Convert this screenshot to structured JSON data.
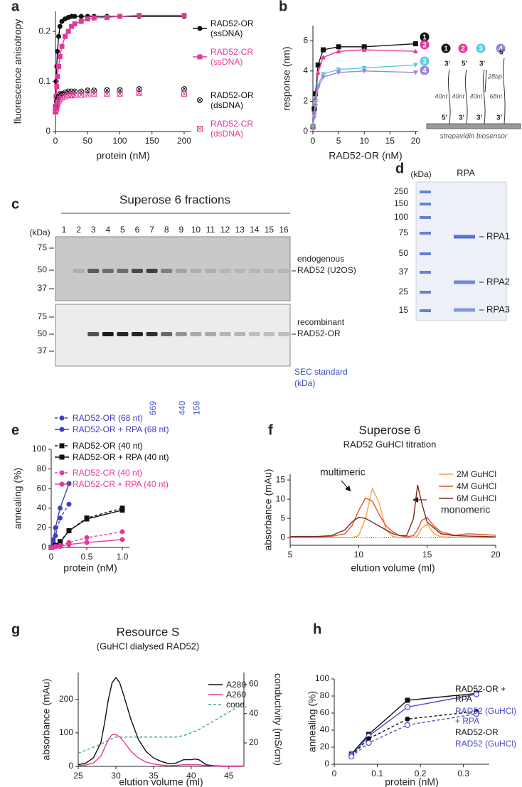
{
  "chart_data": [
    {
      "panel": "a",
      "type": "scatter",
      "x_label": "protein (nM)",
      "y_label": "fluorescence anisotropy",
      "xlim": [
        0,
        210
      ],
      "ylim": [
        0,
        0.24
      ],
      "xticks": [
        0,
        50,
        100,
        150,
        200
      ],
      "yticks": [
        0,
        0.1,
        0.2
      ],
      "x": [
        0,
        1,
        2,
        3,
        5,
        7,
        10,
        15,
        20,
        25,
        30,
        40,
        50,
        60,
        80,
        100,
        130,
        200
      ],
      "series": [
        {
          "name": "RAD52-OR (ssDNA)",
          "color": "#111111",
          "marker": "circle",
          "linestyle": "solid",
          "values": [
            0.05,
            0.1,
            0.13,
            0.16,
            0.19,
            0.21,
            0.22,
            0.225,
            0.228,
            0.23,
            0.23,
            0.23,
            0.23,
            0.23,
            0.23,
            0.23,
            0.23,
            0.23
          ]
        },
        {
          "name": "RAD52-CR (ssDNA)",
          "color": "#e5389b",
          "marker": "square",
          "linestyle": "solid",
          "values": [
            0.05,
            0.07,
            0.09,
            0.11,
            0.13,
            0.15,
            0.17,
            0.19,
            0.2,
            0.21,
            0.215,
            0.22,
            0.225,
            0.227,
            0.228,
            0.23,
            0.232,
            0.232
          ]
        },
        {
          "name": "RAD52-OR (dsDNA)",
          "color": "#111111",
          "marker": "circle-x",
          "linestyle": "none",
          "values": [
            0.04,
            0.05,
            0.06,
            0.065,
            0.07,
            0.075,
            0.075,
            0.078,
            0.08,
            0.08,
            0.08,
            0.08,
            0.082,
            0.082,
            0.083,
            0.083,
            0.085,
            0.085
          ]
        },
        {
          "name": "RAD52-CR (dsDNA)",
          "color": "#e5389b",
          "marker": "square-x",
          "linestyle": "none",
          "values": [
            0.04,
            0.045,
            0.05,
            0.055,
            0.06,
            0.065,
            0.068,
            0.07,
            0.072,
            0.072,
            0.073,
            0.073,
            0.074,
            0.075,
            0.075,
            0.075,
            0.077,
            0.075
          ]
        }
      ]
    },
    {
      "panel": "b",
      "type": "scatter",
      "x_label": "RAD52-OR (nM)",
      "y_label": "response (nm)",
      "xlim": [
        0,
        20.5
      ],
      "ylim": [
        0,
        7
      ],
      "xticks": [
        0,
        5,
        10,
        15,
        20
      ],
      "yticks": [
        0,
        2,
        4,
        6
      ],
      "x": [
        0,
        0.25,
        0.5,
        1,
        2,
        5,
        10,
        20
      ],
      "series": [
        {
          "name": "1",
          "color": "#111111",
          "marker": "square",
          "linestyle": "solid",
          "values": [
            0.3,
            1.5,
            2.5,
            4.4,
            5.4,
            5.6,
            5.6,
            5.8
          ]
        },
        {
          "name": "2",
          "color": "#e5389b",
          "marker": "triangle",
          "linestyle": "solid",
          "values": [
            0.3,
            1.3,
            2.2,
            3.9,
            4.9,
            5.3,
            5.4,
            5.3
          ]
        },
        {
          "name": "3",
          "color": "#5bc8e8",
          "marker": "triangle-down",
          "linestyle": "solid",
          "values": [
            0.3,
            1.0,
            1.9,
            3.1,
            3.8,
            4.1,
            4.2,
            4.4
          ]
        },
        {
          "name": "4",
          "color": "#9b87d0",
          "marker": "triangle-down",
          "linestyle": "solid",
          "values": [
            0.2,
            0.9,
            1.7,
            2.9,
            3.6,
            3.9,
            4.0,
            3.9
          ]
        }
      ]
    },
    {
      "panel": "e",
      "type": "scatter",
      "x_label": "protein (nM)",
      "y_label": "annealing (%)",
      "xlim": [
        0,
        1.1
      ],
      "ylim": [
        0,
        100
      ],
      "xticks": [
        0,
        0.5,
        {
          "value": 1,
          "label": "1.0"
        }
      ],
      "yticks": [
        0,
        20,
        40,
        60,
        80,
        100
      ],
      "series": [
        {
          "name": "RAD52-OR (68 nt)",
          "color": "#3f3fc4",
          "marker": "circle",
          "linestyle": "dashed",
          "x": [
            0,
            0.03,
            0.06,
            0.125,
            0.25
          ],
          "values": [
            0,
            5,
            12,
            30,
            44
          ]
        },
        {
          "name": "RAD52-OR + RPA (68 nt)",
          "color": "#3f3fc4",
          "marker": "circle",
          "linestyle": "solid",
          "x": [
            0,
            0.03,
            0.06,
            0.125,
            0.25
          ],
          "values": [
            0,
            8,
            20,
            40,
            65
          ]
        },
        {
          "name": "RAD52-OR (40 nt)",
          "color": "#111111",
          "marker": "square",
          "linestyle": "dashed",
          "x": [
            0,
            0.06,
            0.125,
            0.25,
            0.5,
            1
          ],
          "values": [
            0,
            2,
            6,
            17,
            30,
            40
          ]
        },
        {
          "name": "RAD52-OR + RPA (40 nt)",
          "color": "#111111",
          "marker": "square",
          "linestyle": "solid",
          "x": [
            0,
            0.06,
            0.125,
            0.25,
            0.5,
            1
          ],
          "values": [
            0,
            2,
            5,
            17,
            29,
            38
          ]
        },
        {
          "name": "RAD52-CR (40 nt)",
          "color": "#e5389b",
          "marker": "circle",
          "linestyle": "dashed",
          "x": [
            0,
            0.06,
            0.125,
            0.25,
            0.5,
            1
          ],
          "values": [
            0,
            1,
            2,
            5,
            10,
            16
          ]
        },
        {
          "name": "RAD52-CR + RPA (40 nt)",
          "color": "#e5389b",
          "marker": "circle",
          "linestyle": "solid",
          "x": [
            0,
            0.06,
            0.125,
            0.25,
            0.5,
            1
          ],
          "values": [
            0,
            0.5,
            1,
            3,
            5,
            8
          ]
        }
      ]
    },
    {
      "panel": "f",
      "type": "line",
      "title": "Superose 6",
      "subtitle": "RAD52 GuHCl titration",
      "x_label": "elution volume (ml)",
      "y_label": "absorbance (mAu)",
      "xlim": [
        5,
        20
      ],
      "ylim": [
        -2,
        16.5
      ],
      "xticks": [
        5,
        10,
        15,
        20
      ],
      "yticks": [
        0,
        5,
        10,
        15
      ],
      "annotations": [
        "multimeric",
        "monomeric"
      ],
      "x": [
        5,
        6,
        7,
        8,
        9,
        9.5,
        10,
        10.5,
        11,
        11.5,
        12,
        12.5,
        13,
        13.5,
        14,
        14.3,
        14.6,
        15,
        15.5,
        16,
        17,
        18,
        19,
        20
      ],
      "series": [
        {
          "name": "2M GuHCl",
          "color": "#f5a04a",
          "linestyle": "solid",
          "values": [
            0,
            0,
            0,
            0,
            0,
            0,
            0.5,
            5,
            12.8,
            9,
            2,
            0.3,
            0,
            0,
            0,
            0.5,
            2.5,
            3.5,
            1,
            0.2,
            0.1,
            0,
            0,
            0
          ]
        },
        {
          "name": "4M GuHCl",
          "color": "#e8502a",
          "linestyle": "solid",
          "values": [
            0.2,
            0.2,
            0.2,
            0.3,
            1,
            3,
            7,
            10.3,
            9.5,
            6,
            3,
            1.5,
            0.5,
            0.2,
            0.5,
            2,
            4.5,
            5.2,
            3,
            1.5,
            0.6,
            1,
            0.8,
            0.6
          ]
        },
        {
          "name": "6M GuHCl",
          "color": "#7a2a1a",
          "linestyle": "solid",
          "values": [
            0.3,
            0.3,
            0.3,
            0.5,
            2,
            4,
            5.3,
            5,
            4,
            3,
            2,
            1,
            0.5,
            0.5,
            5,
            13.7,
            9,
            4,
            2.5,
            1,
            0.5,
            0.4,
            0.3,
            0.2
          ]
        }
      ]
    },
    {
      "panel": "g",
      "type": "line",
      "title": "Resource S",
      "subtitle": "(GuHCl dialysed RAD52)",
      "x_label": "elution volume (ml)",
      "y_label": "absorbance (mAu)",
      "y2_label": "conductivity (mS/cm)",
      "xlim": [
        25,
        47
      ],
      "ylim": [
        0,
        280
      ],
      "y2lim": [
        4,
        68
      ],
      "xticks": [
        25,
        30,
        35,
        40,
        45
      ],
      "yticks": [
        0,
        100,
        200
      ],
      "y2ticks": [
        20,
        40,
        60
      ],
      "x": [
        25,
        26,
        27,
        28,
        28.5,
        29,
        29.5,
        30,
        30.5,
        31,
        32,
        33,
        34,
        35,
        36,
        37,
        38,
        39,
        40,
        40.5,
        41,
        42,
        43,
        44,
        45,
        46,
        47
      ],
      "series": [
        {
          "name": "A280",
          "color": "#111111",
          "linestyle": "solid",
          "values": [
            5,
            10,
            25,
            70,
            130,
            200,
            250,
            265,
            250,
            215,
            140,
            80,
            45,
            25,
            15,
            8,
            10,
            20,
            20,
            22,
            20,
            5,
            2,
            1,
            1,
            1,
            1
          ]
        },
        {
          "name": "A260",
          "color": "#e5389b",
          "linestyle": "solid",
          "values": [
            2,
            4,
            10,
            30,
            55,
            80,
            95,
            95,
            88,
            75,
            45,
            25,
            13,
            7,
            4,
            2,
            3,
            5,
            5,
            5,
            5,
            2,
            1,
            0,
            0,
            0,
            0
          ]
        },
        {
          "name": "cond.",
          "color": "#3aa88a",
          "linestyle": "dashed",
          "axis": "y2",
          "values": [
            13,
            15,
            17,
            19,
            20.5,
            22,
            23,
            24,
            24,
            24,
            24,
            24,
            24,
            24,
            24,
            24,
            24,
            25,
            27,
            28,
            29,
            32,
            35,
            38,
            41,
            44,
            47
          ]
        }
      ]
    },
    {
      "panel": "h",
      "type": "scatter",
      "x_label": "protein (nM)",
      "y_label": "annealing (%)",
      "xlim": [
        0,
        0.36
      ],
      "ylim": [
        0,
        100
      ],
      "xticks": [
        0,
        0.1,
        0.2,
        0.3
      ],
      "yticks": [
        0,
        20,
        40,
        60,
        80,
        100
      ],
      "x": [
        0.04,
        0.08,
        0.17,
        0.33
      ],
      "series": [
        {
          "name": "RAD52-OR + RPA",
          "color": "#111111",
          "marker": "square",
          "linestyle": "solid",
          "values": [
            12,
            35,
            75,
            83
          ]
        },
        {
          "name": "RAD52 (GuHCl) + RPA",
          "color": "#4a4ac8",
          "marker": "circle-open",
          "linestyle": "solid",
          "values": [
            11,
            33,
            67,
            82
          ]
        },
        {
          "name": "RAD52-OR",
          "color": "#111111",
          "marker": "circle",
          "linestyle": "dashed",
          "values": [
            10,
            30,
            53,
            62
          ]
        },
        {
          "name": "RAD52 (GuHCl)",
          "color": "#4a4ac8",
          "marker": "circle-open",
          "linestyle": "dashed",
          "values": [
            9,
            25,
            46,
            59
          ]
        }
      ]
    }
  ],
  "diagram_b": {
    "strands": [
      {
        "id": "1",
        "color": "#111111",
        "top": "3'",
        "length": "40nt",
        "bottom": "5'"
      },
      {
        "id": "2",
        "color": "#e5389b",
        "top": "5'",
        "length": "40nt",
        "bottom": "3'"
      },
      {
        "id": "3",
        "color": "#5bc8e8",
        "top": "3'",
        "duplex": "28bp",
        "length": "40nt",
        "bottom": "3'"
      },
      {
        "id": "4",
        "color": "#9b87d0",
        "top": "5'",
        "length": "68nt",
        "bottom": "3'"
      }
    ],
    "surface": "strepavidin biosensor"
  },
  "gel_c": {
    "panel": "c",
    "title": "Superose 6 fractions",
    "kda_label": "(kDa)",
    "lanes": [
      "1",
      "2",
      "3",
      "4",
      "5",
      "6",
      "7",
      "8",
      "9",
      "10",
      "11",
      "12",
      "13",
      "14",
      "15",
      "16"
    ],
    "blots": [
      {
        "markers": [
          75,
          50,
          37
        ],
        "label": "endogenous",
        "band": "RAD52 (U2OS)"
      },
      {
        "markers": [
          75,
          50,
          37
        ],
        "label": "recombinant",
        "band": "RAD52-OR"
      }
    ],
    "standards": [
      "669",
      "440",
      "158"
    ],
    "standards_label": "SEC standard (kDa)"
  },
  "gel_d": {
    "panel": "d",
    "kda_label": "(kDa)",
    "lane": "RPA",
    "ladder": [
      250,
      150,
      100,
      75,
      50,
      37,
      25,
      15
    ],
    "bands": [
      "RPA1",
      "RPA2",
      "RPA3"
    ]
  }
}
